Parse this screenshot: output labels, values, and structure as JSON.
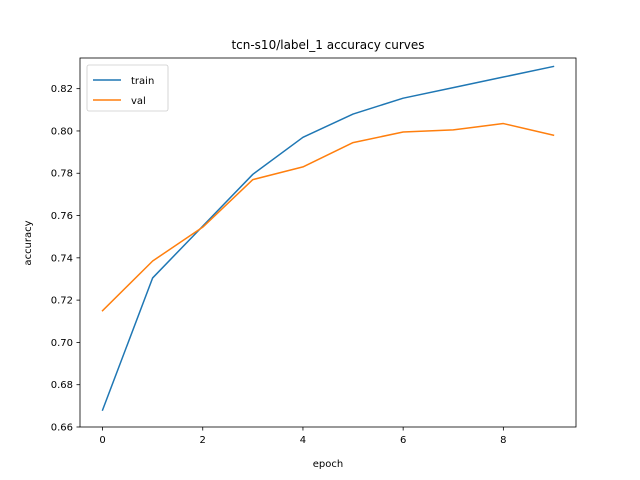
{
  "chart_data": {
    "type": "line",
    "title": "tcn-s10/label_1 accuracy curves",
    "xlabel": "epoch",
    "ylabel": "accuracy",
    "xlim": [
      -0.45,
      9.45
    ],
    "ylim": [
      0.66,
      0.8345
    ],
    "xticks": [
      0,
      2,
      4,
      6,
      8
    ],
    "xtick_labels": [
      "0",
      "2",
      "4",
      "6",
      "8"
    ],
    "yticks": [
      0.66,
      0.68,
      0.7,
      0.72,
      0.74,
      0.76,
      0.78,
      0.8,
      0.82
    ],
    "ytick_labels": [
      "0.66",
      "0.68",
      "0.70",
      "0.72",
      "0.74",
      "0.76",
      "0.78",
      "0.80",
      "0.82"
    ],
    "grid": false,
    "legend_position": "top-left",
    "x": [
      0,
      1,
      2,
      3,
      4,
      5,
      6,
      7,
      8,
      9
    ],
    "series": [
      {
        "name": "train",
        "color": "#1f77b4",
        "values": [
          0.668,
          0.7305,
          0.755,
          0.7795,
          0.797,
          0.808,
          0.8155,
          0.8205,
          0.8255,
          0.8305
        ]
      },
      {
        "name": "val",
        "color": "#ff7f0e",
        "values": [
          0.715,
          0.7385,
          0.7545,
          0.777,
          0.783,
          0.7945,
          0.7995,
          0.8005,
          0.8035,
          0.798
        ]
      }
    ]
  }
}
